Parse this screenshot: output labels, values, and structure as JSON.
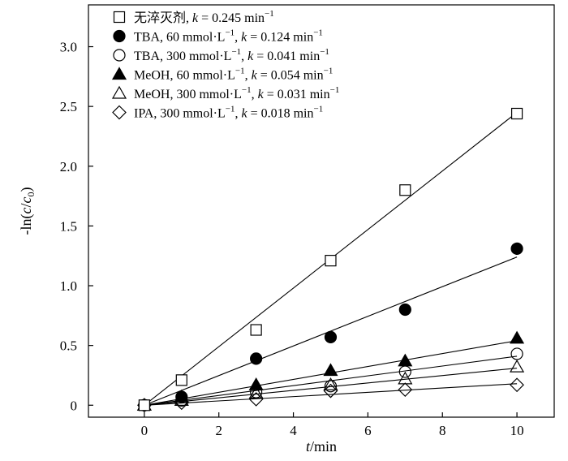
{
  "chart_data": {
    "type": "scatter",
    "xlabel": "t/min",
    "ylabel": "-ln(c/c0)",
    "xlim": [
      -1.5,
      11
    ],
    "ylim": [
      -0.1,
      3.35
    ],
    "xticks": [
      0,
      2,
      4,
      6,
      8,
      10
    ],
    "yticks": [
      0,
      0.5,
      1.0,
      1.5,
      2.0,
      2.5,
      3.0
    ],
    "ytick_labels": [
      "0",
      "0.5",
      "1.0",
      "1.5",
      "2.0",
      "2.5",
      "3.0"
    ],
    "legend_position": "top-left",
    "series": [
      {
        "name": "无淬灭剂",
        "prefix": "无淬灭剂, ",
        "conc": "",
        "k": "0.245",
        "marker": "square-open",
        "slope": 0.245,
        "x": [
          0,
          1,
          3,
          5,
          7,
          10
        ],
        "y": [
          0,
          0.21,
          0.63,
          1.21,
          1.8,
          2.44
        ]
      },
      {
        "name": "TBA, 60 mmol·L⁻¹",
        "prefix": "TBA, ",
        "conc": "60",
        "k": "0.124",
        "marker": "circle-filled",
        "slope": 0.124,
        "x": [
          0,
          1,
          3,
          5,
          7,
          10
        ],
        "y": [
          0,
          0.07,
          0.39,
          0.57,
          0.8,
          1.31
        ]
      },
      {
        "name": "TBA, 300 mmol·L⁻¹",
        "prefix": "TBA, ",
        "conc": "300",
        "k": "0.041",
        "marker": "circle-open",
        "slope": 0.041,
        "x": [
          0,
          1,
          3,
          5,
          7,
          10
        ],
        "y": [
          0,
          0.04,
          0.11,
          0.16,
          0.28,
          0.43
        ]
      },
      {
        "name": "MeOH, 60 mmol·L⁻¹",
        "prefix": "MeOH, ",
        "conc": "60",
        "k": "0.054",
        "marker": "triangle-filled",
        "slope": 0.054,
        "x": [
          0,
          1,
          3,
          5,
          7,
          10
        ],
        "y": [
          0,
          0.07,
          0.17,
          0.29,
          0.37,
          0.56
        ]
      },
      {
        "name": "MeOH, 300 mmol·L⁻¹",
        "prefix": "MeOH, ",
        "conc": "300",
        "k": "0.031",
        "marker": "triangle-open",
        "slope": 0.031,
        "x": [
          0,
          1,
          3,
          5,
          7,
          10
        ],
        "y": [
          0,
          0.04,
          0.1,
          0.17,
          0.22,
          0.32
        ]
      },
      {
        "name": "IPA, 300 mmol·L⁻¹",
        "prefix": "IPA, ",
        "conc": "300",
        "k": "0.018",
        "marker": "diamond-open",
        "slope": 0.018,
        "x": [
          0,
          1,
          3,
          5,
          7,
          10
        ],
        "y": [
          0,
          0.02,
          0.05,
          0.12,
          0.13,
          0.17
        ]
      }
    ]
  }
}
